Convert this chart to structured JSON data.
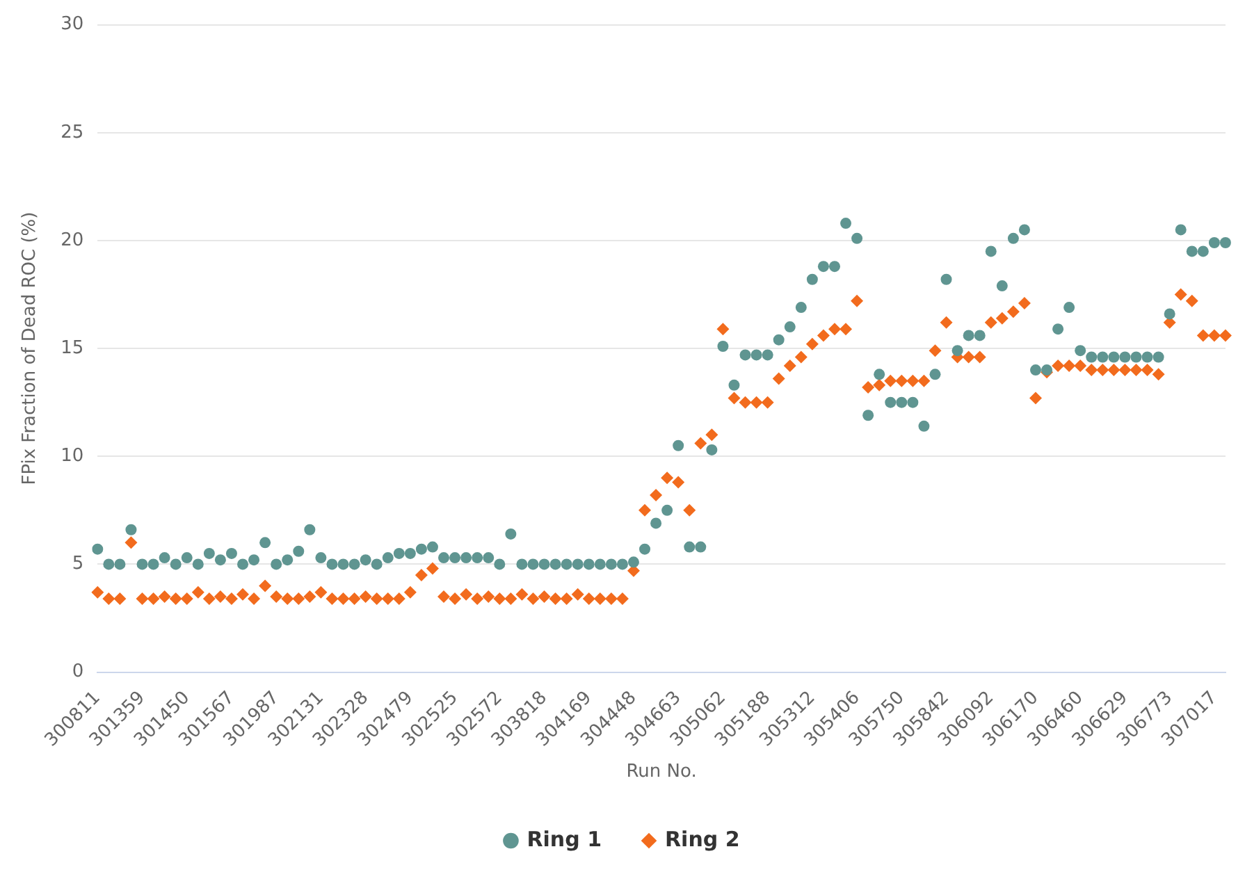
{
  "chart_data": {
    "type": "scatter",
    "xlabel": "Run No.",
    "ylabel": "FPix Fraction of Dead ROC (%)",
    "categories": [
      "300811",
      null,
      null,
      null,
      "301359",
      null,
      null,
      null,
      "301450",
      null,
      null,
      null,
      "301567",
      null,
      null,
      null,
      "301987",
      null,
      null,
      null,
      "302131",
      null,
      null,
      null,
      "302328",
      null,
      null,
      null,
      "302479",
      null,
      null,
      null,
      "302525",
      null,
      null,
      null,
      "302572",
      null,
      null,
      null,
      "303818",
      null,
      null,
      null,
      "304169",
      null,
      null,
      null,
      "304448",
      null,
      null,
      null,
      "304663",
      null,
      null,
      null,
      "305062",
      null,
      null,
      null,
      "305188",
      null,
      null,
      null,
      "305312",
      null,
      null,
      null,
      "305406",
      null,
      null,
      null,
      "305750",
      null,
      null,
      null,
      "305842",
      null,
      null,
      null,
      "306092",
      null,
      null,
      null,
      "306170",
      null,
      null,
      null,
      "306460",
      null,
      null,
      null,
      "306629",
      null,
      null,
      null,
      "306773",
      null,
      null,
      null,
      "307017",
      null
    ],
    "series": [
      {
        "name": "Ring 1",
        "color": "#5f9591",
        "marker": "circle",
        "values": [
          5.7,
          5.0,
          5.0,
          6.6,
          5.0,
          5.0,
          5.3,
          5.0,
          5.3,
          5.0,
          5.5,
          5.2,
          5.5,
          5.0,
          5.2,
          6.0,
          5.0,
          5.2,
          5.6,
          6.6,
          5.3,
          5.0,
          5.0,
          5.0,
          5.2,
          5.0,
          5.3,
          5.5,
          5.5,
          5.7,
          5.8,
          5.3,
          5.3,
          5.3,
          5.3,
          5.3,
          5.0,
          6.4,
          5.0,
          5.0,
          5.0,
          5.0,
          5.0,
          5.0,
          5.0,
          5.0,
          5.0,
          5.0,
          5.1,
          5.7,
          6.9,
          7.5,
          10.5,
          5.8,
          5.8,
          10.3,
          15.1,
          13.3,
          14.7,
          14.7,
          14.7,
          15.4,
          16.0,
          16.9,
          18.2,
          18.8,
          18.8,
          20.8,
          20.1,
          11.9,
          13.8,
          12.5,
          12.5,
          12.5,
          11.4,
          13.8,
          18.2,
          14.9,
          15.6,
          15.6,
          19.5,
          17.9,
          20.1,
          20.5,
          14.0,
          14.0,
          15.9,
          16.9,
          14.9,
          14.6,
          14.6,
          14.6,
          14.6,
          14.6,
          14.6,
          14.6,
          16.6,
          20.5,
          19.5,
          19.5,
          19.9,
          19.9
        ]
      },
      {
        "name": "Ring 2",
        "color": "#f26b1d",
        "marker": "diamond",
        "values": [
          3.7,
          3.4,
          3.4,
          6.0,
          3.4,
          3.4,
          3.5,
          3.4,
          3.4,
          3.7,
          3.4,
          3.5,
          3.4,
          3.6,
          3.4,
          4.0,
          3.5,
          3.4,
          3.4,
          3.5,
          3.7,
          3.4,
          3.4,
          3.4,
          3.5,
          3.4,
          3.4,
          3.4,
          3.7,
          4.5,
          4.8,
          3.5,
          3.4,
          3.6,
          3.4,
          3.5,
          3.4,
          3.4,
          3.6,
          3.4,
          3.5,
          3.4,
          3.4,
          3.6,
          3.4,
          3.4,
          3.4,
          3.4,
          4.7,
          7.5,
          8.2,
          9.0,
          8.8,
          7.5,
          10.6,
          11.0,
          15.9,
          12.7,
          12.5,
          12.5,
          12.5,
          13.6,
          14.2,
          14.6,
          15.2,
          15.6,
          15.9,
          15.9,
          17.2,
          13.2,
          13.3,
          13.5,
          13.5,
          13.5,
          13.5,
          14.9,
          16.2,
          14.6,
          14.6,
          14.6,
          16.2,
          16.4,
          16.7,
          17.1,
          12.7,
          13.9,
          14.2,
          14.2,
          14.2,
          14.0,
          14.0,
          14.0,
          14.0,
          14.0,
          14.0,
          13.8,
          16.2,
          17.5,
          17.2,
          15.6,
          15.6,
          15.6
        ]
      }
    ],
    "ylim": [
      0,
      30
    ],
    "yticks": [
      0,
      5,
      10,
      15,
      20,
      25,
      30
    ],
    "grid": "y",
    "legend": "bottom"
  }
}
